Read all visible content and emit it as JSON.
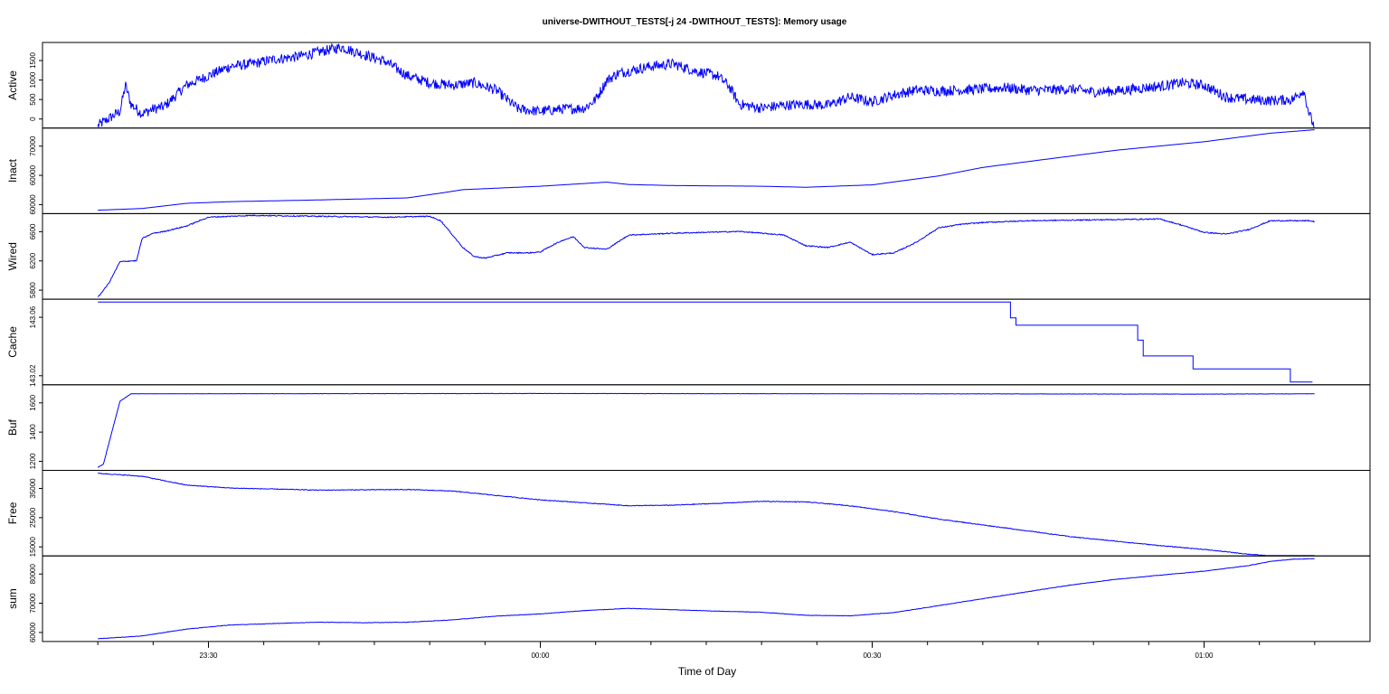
{
  "chart_data": {
    "type": "line",
    "title": "universe-DWITHOUT_TESTS[-j 24  -DWITHOUT_TESTS]: Memory usage",
    "xlabel": "Time of Day",
    "x_ticks": [
      "23:30",
      "00:00",
      "00:30",
      "01:00"
    ],
    "x_range_minutes_from_midnight": [
      -45,
      75
    ],
    "line_color": "#0000ff",
    "panels": [
      {
        "name": "Active",
        "ylim": [
          0,
          1800
        ],
        "yticks": [
          "0",
          "500",
          "1000",
          "1500"
        ],
        "noise": 110,
        "x": [
          -40,
          -38,
          -37.5,
          -37,
          -36,
          -35,
          -34,
          -32,
          -30,
          -28,
          -26,
          -24,
          -22,
          -20,
          -18,
          -16,
          -14,
          -12,
          -10,
          -8,
          -6,
          -4,
          -2,
          0,
          2,
          4,
          5,
          6,
          7,
          8,
          10,
          12,
          14,
          16,
          17,
          18,
          20,
          22,
          24,
          26,
          28,
          30,
          32,
          34,
          36,
          38,
          40,
          42,
          44,
          46,
          48,
          50,
          52,
          54,
          56,
          58,
          60,
          62,
          64,
          66,
          68,
          69,
          69.5,
          70
        ],
        "y": [
          50,
          350,
          900,
          500,
          300,
          400,
          450,
          900,
          1100,
          1300,
          1350,
          1450,
          1500,
          1600,
          1700,
          1550,
          1400,
          1100,
          950,
          900,
          950,
          800,
          400,
          350,
          400,
          420,
          600,
          1000,
          1150,
          1200,
          1300,
          1350,
          1200,
          1100,
          900,
          500,
          420,
          480,
          500,
          480,
          650,
          550,
          700,
          800,
          780,
          800,
          820,
          850,
          800,
          800,
          820,
          760,
          780,
          830,
          880,
          950,
          900,
          650,
          600,
          580,
          600,
          800,
          300,
          0
        ]
      },
      {
        "name": "Inact",
        "ylim": [
          51000,
          76000
        ],
        "yticks": [
          "60000",
          "60000",
          "70000"
        ],
        "noise": 0,
        "x": [
          -40,
          -36,
          -32,
          -28,
          -20,
          -12,
          -9,
          -7,
          0,
          6,
          8,
          12,
          20,
          24,
          30,
          36,
          40,
          46,
          52,
          60,
          66,
          70
        ],
        "y": [
          52000,
          52500,
          54000,
          54500,
          55000,
          55600,
          57000,
          58000,
          59000,
          60200,
          59500,
          59200,
          59000,
          58700,
          59400,
          62000,
          64500,
          67000,
          69500,
          72000,
          74500,
          75500
        ]
      },
      {
        "name": "Wired",
        "ylim": [
          5720,
          6680
        ],
        "yticks": [
          "5800",
          "6200",
          "6600"
        ],
        "noise": 6,
        "x": [
          -40,
          -39,
          -38,
          -37,
          -36.5,
          -36,
          -35,
          -34,
          -33,
          -32,
          -30,
          -26,
          -20,
          -14,
          -10,
          -9,
          -7,
          -6,
          -5,
          -3,
          -1,
          0,
          1,
          2,
          3,
          4,
          6,
          8,
          12,
          18,
          22,
          24,
          26,
          28,
          30,
          32,
          34,
          36,
          38,
          40,
          44,
          50,
          56,
          58,
          60,
          62,
          64,
          66,
          68,
          69.5,
          70
        ],
        "y": [
          5740,
          5900,
          6140,
          6150,
          6150,
          6400,
          6460,
          6480,
          6510,
          6540,
          6640,
          6660,
          6650,
          6640,
          6650,
          6600,
          6300,
          6200,
          6180,
          6240,
          6240,
          6250,
          6320,
          6380,
          6420,
          6300,
          6280,
          6440,
          6460,
          6480,
          6440,
          6320,
          6300,
          6360,
          6220,
          6240,
          6360,
          6520,
          6560,
          6580,
          6600,
          6610,
          6620,
          6550,
          6470,
          6450,
          6500,
          6600,
          6600,
          6600,
          6590
        ]
      },
      {
        "name": "Cache",
        "ylim": [
          143.006,
          143.098
        ],
        "yticks": [
          "143.02",
          "143.06"
        ],
        "noise": 0,
        "step": true,
        "x": [
          -40,
          42.5,
          42.5,
          43,
          43,
          54,
          54,
          54.5,
          54.5,
          59,
          59,
          67.8,
          67.8,
          69.8
        ],
        "y": [
          143.095,
          143.095,
          143.078,
          143.078,
          143.07,
          143.07,
          143.054,
          143.054,
          143.037,
          143.037,
          143.023,
          143.023,
          143.009,
          143.009
        ]
      },
      {
        "name": "Buf",
        "ylim": [
          1140,
          1710
        ],
        "yticks": [
          "1200",
          "1400",
          "1600"
        ],
        "noise": 1,
        "x": [
          -40,
          -39.5,
          -38,
          -37,
          0,
          30,
          60,
          70
        ],
        "y": [
          1160,
          1180,
          1600,
          1650,
          1652,
          1650,
          1648,
          1650
        ]
      },
      {
        "name": "Free",
        "ylim": [
          11000,
          40000
        ],
        "yticks": [
          "15000",
          "25000",
          "35000"
        ],
        "noise": 120,
        "x": [
          -40,
          -36,
          -32,
          -28,
          -20,
          -12,
          -8,
          -4,
          0,
          4,
          8,
          12,
          16,
          20,
          24,
          28,
          32,
          36,
          40,
          44,
          48,
          52,
          56,
          60,
          64,
          68,
          70
        ],
        "y": [
          39000,
          38000,
          35000,
          34000,
          33300,
          33500,
          33000,
          31500,
          30000,
          29000,
          28000,
          28200,
          28800,
          29500,
          29300,
          28000,
          26000,
          23500,
          21500,
          19500,
          17500,
          16000,
          14500,
          13200,
          11600,
          10400,
          10200
        ]
      },
      {
        "name": "sum",
        "ylim": [
          58000,
          89000
        ],
        "yticks": [
          "60000",
          "70000",
          "80000"
        ],
        "noise": 80,
        "x": [
          -40,
          -36,
          -32,
          -28,
          -24,
          -20,
          -16,
          -12,
          -8,
          -4,
          0,
          4,
          8,
          12,
          16,
          20,
          24,
          28,
          32,
          36,
          40,
          44,
          48,
          52,
          56,
          60,
          64,
          66,
          68,
          70
        ],
        "y": [
          59000,
          60000,
          62500,
          64000,
          64500,
          65000,
          64800,
          65000,
          65800,
          67200,
          68000,
          69200,
          70000,
          69500,
          69000,
          68600,
          67500,
          67300,
          68500,
          71000,
          73500,
          76000,
          78500,
          80500,
          82000,
          83500,
          85500,
          87000,
          87800,
          88000
        ]
      }
    ]
  }
}
